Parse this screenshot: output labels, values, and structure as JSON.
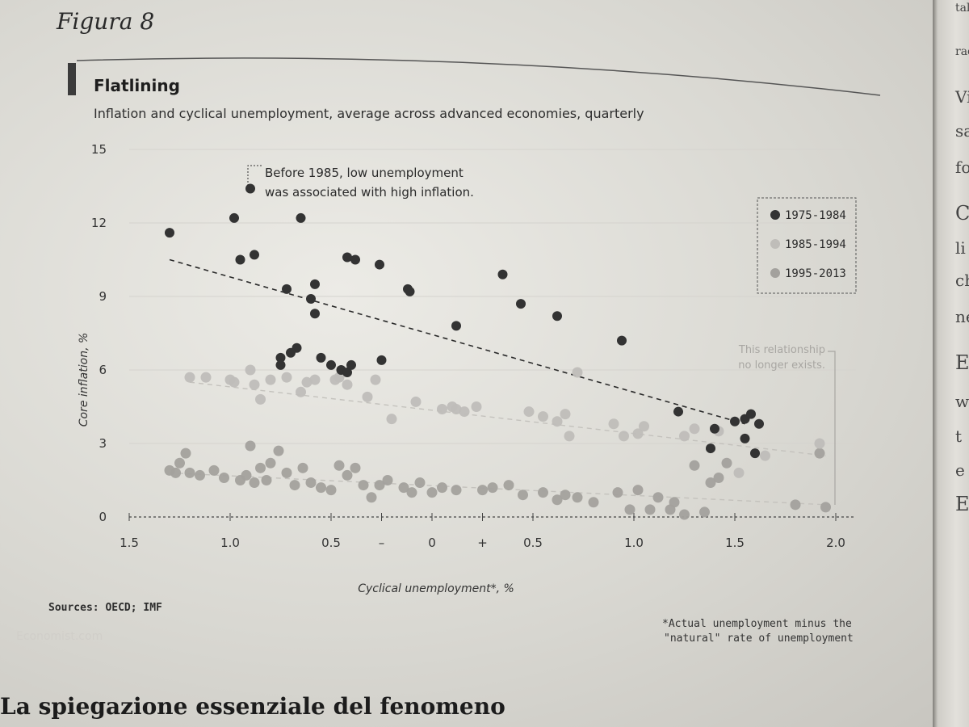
{
  "figure_label": "Figura 8",
  "sources": "Sources: OECD; IMF",
  "watermark": "Economist.com",
  "footnote_line1": "*Actual unemployment minus the",
  "footnote_line2": "\"natural\" rate of unemployment",
  "bottom_text": "La spiegazione essenziale del fenomeno",
  "right_page_fragments": [
    "tale",
    "rac",
    "Vi",
    "sa",
    "fo",
    "C",
    "li",
    "ch",
    "ne",
    "E",
    "w",
    "t",
    "e",
    "E"
  ],
  "colors": {
    "series_1975_1984": "#333333",
    "series_1985_1994": "#bfbdb9",
    "series_1995_2013": "#a3a19d",
    "grid": "#d5d3ce",
    "trend_dark": "#2a2a2a",
    "trend_light": "#c4c2bd"
  },
  "chart_data": {
    "type": "scatter",
    "title": "Flatlining",
    "subtitle": "Inflation and cyclical unemployment, average across advanced economies, quarterly",
    "xlabel": "Cyclical unemployment*, %",
    "ylabel": "Core inflation, %",
    "xlim": [
      -1.5,
      2.0
    ],
    "ylim": [
      0,
      15
    ],
    "x_tick_labels": [
      {
        "value": -1.5,
        "label": "1.5"
      },
      {
        "value": -1.0,
        "label": "1.0"
      },
      {
        "value": -0.5,
        "label": "0.5"
      },
      {
        "value": -0.25,
        "label": "–"
      },
      {
        "value": 0,
        "label": "0"
      },
      {
        "value": 0.25,
        "label": "+"
      },
      {
        "value": 0.5,
        "label": "0.5"
      },
      {
        "value": 1.0,
        "label": "1.0"
      },
      {
        "value": 1.5,
        "label": "1.5"
      },
      {
        "value": 2.0,
        "label": "2.0"
      }
    ],
    "y_ticks": [
      0,
      3,
      6,
      9,
      12,
      15
    ],
    "grid": true,
    "legend_position": "top-right",
    "annotations": [
      {
        "text_lines": [
          "Before 1985, low unemployment",
          "was associated with high inflation."
        ]
      },
      {
        "text_lines": [
          "This relationship",
          "no longer exists."
        ]
      }
    ],
    "series": [
      {
        "name": "1975-1984",
        "points": [
          [
            -1.3,
            11.6
          ],
          [
            -0.98,
            12.2
          ],
          [
            -0.9,
            13.4
          ],
          [
            -0.95,
            10.5
          ],
          [
            -0.88,
            10.7
          ],
          [
            -0.65,
            12.2
          ],
          [
            -0.72,
            9.3
          ],
          [
            -0.58,
            9.5
          ],
          [
            -0.6,
            8.9
          ],
          [
            -0.58,
            8.3
          ],
          [
            -0.67,
            6.9
          ],
          [
            -0.7,
            6.7
          ],
          [
            -0.75,
            6.5
          ],
          [
            -0.75,
            6.2
          ],
          [
            -0.55,
            6.5
          ],
          [
            -0.5,
            6.2
          ],
          [
            -0.45,
            6.0
          ],
          [
            -0.42,
            5.9
          ],
          [
            -0.4,
            6.2
          ],
          [
            -0.42,
            10.6
          ],
          [
            -0.38,
            10.5
          ],
          [
            -0.26,
            10.3
          ],
          [
            -0.25,
            6.4
          ],
          [
            -0.12,
            9.3
          ],
          [
            -0.11,
            9.2
          ],
          [
            0.12,
            7.8
          ],
          [
            0.35,
            9.9
          ],
          [
            0.44,
            8.7
          ],
          [
            0.62,
            8.2
          ],
          [
            0.94,
            7.2
          ],
          [
            1.22,
            4.3
          ],
          [
            1.38,
            2.8
          ],
          [
            1.4,
            3.6
          ],
          [
            1.5,
            3.9
          ],
          [
            1.55,
            3.2
          ],
          [
            1.55,
            4.0
          ],
          [
            1.58,
            4.2
          ],
          [
            1.6,
            2.6
          ],
          [
            1.62,
            3.8
          ]
        ]
      },
      {
        "name": "1985-1994",
        "points": [
          [
            -1.2,
            5.7
          ],
          [
            -1.12,
            5.7
          ],
          [
            -1.0,
            5.6
          ],
          [
            -0.98,
            5.5
          ],
          [
            -0.9,
            6.0
          ],
          [
            -0.88,
            5.4
          ],
          [
            -0.85,
            4.8
          ],
          [
            -0.8,
            5.6
          ],
          [
            -0.72,
            5.7
          ],
          [
            -0.65,
            5.1
          ],
          [
            -0.62,
            5.5
          ],
          [
            -0.58,
            5.6
          ],
          [
            -0.48,
            5.6
          ],
          [
            -0.46,
            5.7
          ],
          [
            -0.42,
            5.4
          ],
          [
            -0.32,
            4.9
          ],
          [
            -0.28,
            5.6
          ],
          [
            -0.2,
            4.0
          ],
          [
            -0.08,
            4.7
          ],
          [
            0.05,
            4.4
          ],
          [
            0.1,
            4.5
          ],
          [
            0.12,
            4.4
          ],
          [
            0.16,
            4.3
          ],
          [
            0.22,
            4.5
          ],
          [
            0.48,
            4.3
          ],
          [
            0.55,
            4.1
          ],
          [
            0.62,
            3.9
          ],
          [
            0.66,
            4.2
          ],
          [
            0.68,
            3.3
          ],
          [
            0.72,
            5.9
          ],
          [
            0.9,
            3.8
          ],
          [
            0.95,
            3.3
          ],
          [
            1.02,
            3.4
          ],
          [
            1.05,
            3.7
          ],
          [
            1.25,
            3.3
          ],
          [
            1.3,
            3.6
          ],
          [
            1.42,
            3.5
          ],
          [
            1.52,
            1.8
          ],
          [
            1.65,
            2.5
          ],
          [
            1.92,
            3.0
          ]
        ]
      },
      {
        "name": "1995-2013",
        "points": [
          [
            -1.3,
            1.9
          ],
          [
            -1.27,
            1.8
          ],
          [
            -1.25,
            2.2
          ],
          [
            -1.22,
            2.6
          ],
          [
            -1.2,
            1.8
          ],
          [
            -1.15,
            1.7
          ],
          [
            -1.08,
            1.9
          ],
          [
            -1.03,
            1.6
          ],
          [
            -0.95,
            1.5
          ],
          [
            -0.92,
            1.7
          ],
          [
            -0.9,
            2.9
          ],
          [
            -0.88,
            1.4
          ],
          [
            -0.85,
            2.0
          ],
          [
            -0.82,
            1.5
          ],
          [
            -0.8,
            2.2
          ],
          [
            -0.76,
            2.7
          ],
          [
            -0.72,
            1.8
          ],
          [
            -0.68,
            1.3
          ],
          [
            -0.64,
            2.0
          ],
          [
            -0.6,
            1.4
          ],
          [
            -0.55,
            1.2
          ],
          [
            -0.5,
            1.1
          ],
          [
            -0.46,
            2.1
          ],
          [
            -0.42,
            1.7
          ],
          [
            -0.38,
            2.0
          ],
          [
            -0.34,
            1.3
          ],
          [
            -0.3,
            0.8
          ],
          [
            -0.26,
            1.3
          ],
          [
            -0.22,
            1.5
          ],
          [
            -0.14,
            1.2
          ],
          [
            -0.1,
            1.0
          ],
          [
            -0.06,
            1.4
          ],
          [
            0.0,
            1.0
          ],
          [
            0.05,
            1.2
          ],
          [
            0.12,
            1.1
          ],
          [
            0.25,
            1.1
          ],
          [
            0.3,
            1.2
          ],
          [
            0.38,
            1.3
          ],
          [
            0.45,
            0.9
          ],
          [
            0.55,
            1.0
          ],
          [
            0.62,
            0.7
          ],
          [
            0.66,
            0.9
          ],
          [
            0.72,
            0.8
          ],
          [
            0.8,
            0.6
          ],
          [
            0.92,
            1.0
          ],
          [
            0.98,
            0.3
          ],
          [
            1.02,
            1.1
          ],
          [
            1.08,
            0.3
          ],
          [
            1.12,
            0.8
          ],
          [
            1.18,
            0.3
          ],
          [
            1.2,
            0.6
          ],
          [
            1.25,
            0.1
          ],
          [
            1.3,
            2.1
          ],
          [
            1.35,
            0.2
          ],
          [
            1.38,
            1.4
          ],
          [
            1.42,
            1.6
          ],
          [
            1.46,
            2.2
          ],
          [
            1.8,
            0.5
          ],
          [
            1.95,
            0.4
          ],
          [
            1.92,
            2.6
          ]
        ]
      }
    ],
    "trend_lines": [
      {
        "series": "1975-1984",
        "from": [
          -1.3,
          10.5
        ],
        "to": [
          1.55,
          3.8
        ]
      },
      {
        "series": "1985-1994",
        "from": [
          -1.2,
          5.5
        ],
        "to": [
          1.95,
          2.5
        ]
      },
      {
        "series": "1995-2013",
        "from": [
          -1.3,
          1.8
        ],
        "to": [
          1.95,
          0.5
        ]
      }
    ]
  }
}
